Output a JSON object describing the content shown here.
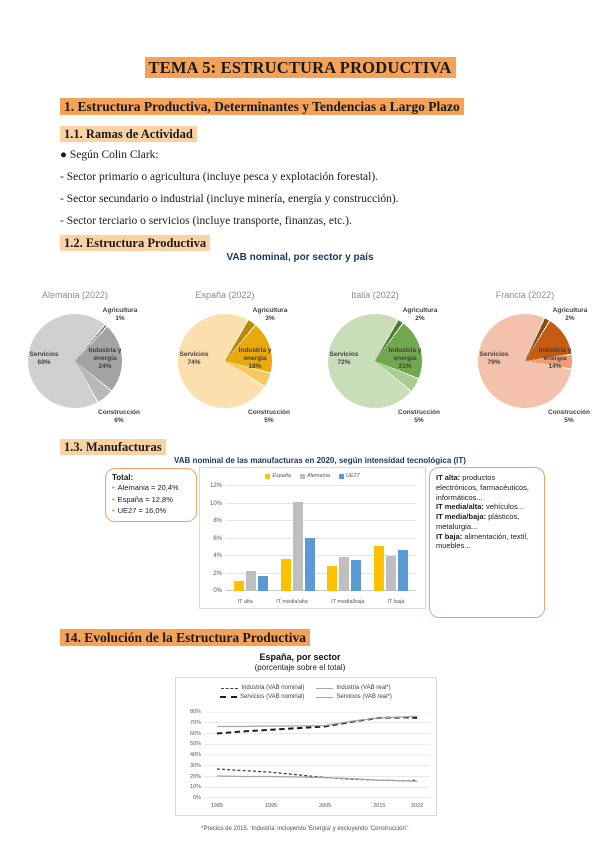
{
  "theme": {
    "highlight_strong": "#F5A158",
    "highlight_soft": "#FAD2A4",
    "callout_border": "#F4A06A",
    "bullet_color": "#ED7D31"
  },
  "page": {
    "title": "TEMA 5: ESTRUCTURA PRODUCTIVA"
  },
  "section1": {
    "heading": "1. Estructura Productiva, Determinantes y Tendencias a Largo Plazo",
    "sub1": {
      "heading": "1.1. Ramas de Actividad",
      "bullet": "● Según Colin Clark:",
      "lines": [
        "- Sector primario o agricultura (incluye pesca y explotación forestal).",
        "- Sector secundario o industrial (incluye minería, energía y construcción).",
        "- Sector terciario o servicios (incluye transporte, finanzas, etc.)."
      ]
    },
    "sub2": {
      "heading": "1.2. Estructura Productiva"
    },
    "sub3": {
      "heading": "1.3. Manufacturas"
    }
  },
  "section14": {
    "heading": "14. Evolución de la Estructura Productiva"
  },
  "chart_data": [
    {
      "type": "pie",
      "title": "VAB nominal, por sector y país",
      "pies": [
        {
          "title": "Alemania (2022)",
          "start": 40,
          "slices": [
            {
              "label": "Agricultura",
              "value": 1,
              "color": "#7f7f7f"
            },
            {
              "label": "Industria y energía",
              "value": 24,
              "color": "#a3a3a3"
            },
            {
              "label": "Construcción",
              "value": 6,
              "color": "#b8b8b8"
            },
            {
              "label": "Servicios",
              "value": 69,
              "color": "#d0d0d0"
            }
          ]
        },
        {
          "title": "España (2022)",
          "start": 30,
          "slices": [
            {
              "label": "Agricultura",
              "value": 3,
              "color": "#B98A00"
            },
            {
              "label": "Industria y energía",
              "value": 18,
              "color": "#E9A90B"
            },
            {
              "label": "Construcción",
              "value": 5,
              "color": "#F6C85F"
            },
            {
              "label": "Servicios",
              "value": 74,
              "color": "#FBDFAC"
            }
          ]
        },
        {
          "title": "Italia (2022)",
          "start": 30,
          "slices": [
            {
              "label": "Agricultura",
              "value": 2,
              "color": "#4E7A32"
            },
            {
              "label": "Industria y energía",
              "value": 21,
              "color": "#71A84F"
            },
            {
              "label": "Construcción",
              "value": 5,
              "color": "#A8CD8E"
            },
            {
              "label": "Servicios",
              "value": 72,
              "color": "#C9DEB8"
            }
          ]
        },
        {
          "title": "Francia (2022)",
          "start": 25,
          "slices": [
            {
              "label": "Agricultura",
              "value": 2,
              "color": "#8A4A13"
            },
            {
              "label": "Industria y energía",
              "value": 14,
              "color": "#C55A11"
            },
            {
              "label": "Construcción",
              "value": 5,
              "color": "#EE9E72"
            },
            {
              "label": "Servicios",
              "value": 79,
              "color": "#F4C1AD"
            }
          ]
        }
      ]
    },
    {
      "type": "bar",
      "title": "VAB nominal de las manufacturas en 2020, según intensidad tecnológica (IT)",
      "categories": [
        "IT alta",
        "IT media/alta",
        "IT media/baja",
        "IT baja"
      ],
      "series": [
        {
          "name": "España",
          "color": "#FFC000",
          "values": [
            1.1,
            3.7,
            2.9,
            5.1
          ]
        },
        {
          "name": "Alemania",
          "color": "#BFBFBF",
          "values": [
            2.3,
            10.2,
            3.9,
            4.0
          ]
        },
        {
          "name": "UE27",
          "color": "#5B9BD5",
          "values": [
            1.7,
            6.1,
            3.5,
            4.7
          ]
        }
      ],
      "ylim": [
        0,
        12
      ],
      "yticks": [
        "0%",
        "2%",
        "4%",
        "6%",
        "8%",
        "10%",
        "12%"
      ],
      "legend_position": "top",
      "grid": true,
      "annotations": {
        "total_box": {
          "title": "Total:",
          "items": [
            "Alemania = 20,4%",
            "España = 12,8%",
            "UE27 = 16,0%"
          ]
        },
        "it_box": [
          {
            "bold": "IT alta:",
            "text": "productos electrónicos, farmacéuticos, informáticos..."
          },
          {
            "bold": "IT media/alta:",
            "text": "vehículos..."
          },
          {
            "bold": "IT media/baja:",
            "text": "plásticos, metalurgia..."
          },
          {
            "bold": "IT baja:",
            "text": "alimentación, textil, muebles..."
          }
        ]
      }
    },
    {
      "type": "line",
      "title": "España, por sector",
      "subtitle": "(porcentaje sobre el total)",
      "x": [
        1985,
        1990,
        1995,
        2000,
        2005,
        2010,
        2015,
        2020,
        2022
      ],
      "xticks": [
        "1985",
        "1995",
        "2005",
        "2015",
        "2022"
      ],
      "ylim": [
        0,
        80
      ],
      "yticks": [
        "0%",
        "10%",
        "20%",
        "30%",
        "40%",
        "50%",
        "60%",
        "70%",
        "80%"
      ],
      "grid": true,
      "legend_position": "top",
      "series": [
        {
          "name": "Industria (VAB nominal)",
          "style": "dashed",
          "color": "#404040",
          "values": [
            27,
            25.5,
            24,
            21.5,
            19,
            17.5,
            16.5,
            16,
            16.5
          ]
        },
        {
          "name": "Industria (VAB real*)",
          "style": "solid",
          "color": "#a6a6a6",
          "values": [
            20.5,
            20,
            20,
            19.5,
            19,
            18,
            16.5,
            16,
            15.5
          ]
        },
        {
          "name": "Servicios (VAB nominal)",
          "style": "dashed-long",
          "color": "#1a1a1a",
          "values": [
            60,
            62,
            63.5,
            65,
            66.5,
            71,
            74.5,
            75,
            74.5
          ]
        },
        {
          "name": "Servicios (VAB real*)",
          "style": "solid",
          "color": "#a6a6a6",
          "values": [
            66.5,
            66.5,
            67,
            67,
            67.5,
            71.5,
            74.5,
            75.5,
            76
          ]
        }
      ],
      "footnote": "*Precios de 2015. ‘Industria’ incluyendo ‘Energía’ y excluyendo ‘Construcción’."
    }
  ]
}
